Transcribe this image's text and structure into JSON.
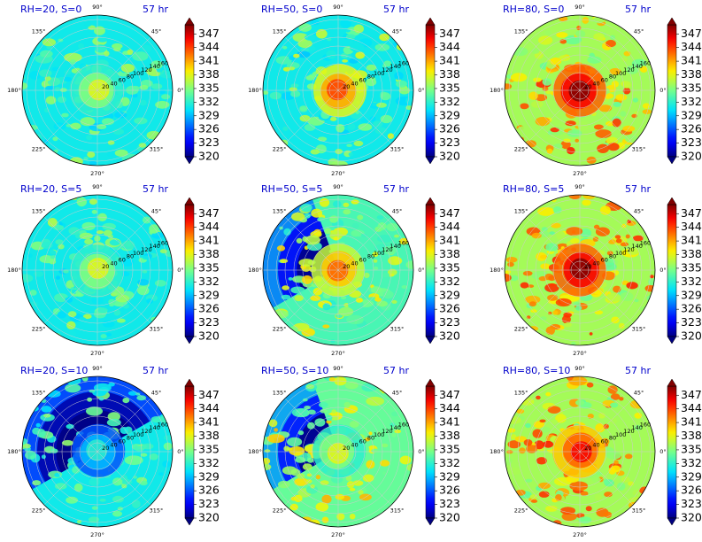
{
  "figure": {
    "time_label": "57 hr",
    "theta_ticks": [
      "0°",
      "45°",
      "90°",
      "135°",
      "180°",
      "225°",
      "270°",
      "315°"
    ],
    "theta_values": [
      0,
      45,
      90,
      135,
      180,
      225,
      270,
      315
    ],
    "r_ticks": [
      "20",
      "40",
      "60",
      "80",
      "100",
      "120",
      "140",
      "160"
    ],
    "r_values": [
      20,
      40,
      60,
      80,
      100,
      120,
      140,
      160
    ],
    "r_max": 170,
    "colorbar_ticks": [
      "320",
      "323",
      "326",
      "329",
      "332",
      "335",
      "338",
      "341",
      "344",
      "347"
    ],
    "colorbar_values": [
      320,
      323,
      326,
      329,
      332,
      335,
      338,
      341,
      344,
      347
    ],
    "colorbar_range": [
      320,
      349
    ],
    "colormap": "jet",
    "title_color": "#0000cc"
  },
  "chart_data": [
    {
      "type": "heatmap",
      "title": "RH=20, S=0",
      "time": "57 hr",
      "field_summary": {
        "background": 331,
        "eyewall": 338,
        "band_strength": 0.5,
        "cold_sector": false
      }
    },
    {
      "type": "heatmap",
      "title": "RH=50, S=0",
      "time": "57 hr",
      "field_summary": {
        "background": 331,
        "eyewall": 344,
        "band_strength": 0.6,
        "cold_sector": false
      }
    },
    {
      "type": "heatmap",
      "title": "RH=80, S=0",
      "time": "57 hr",
      "field_summary": {
        "background": 336,
        "eyewall": 349,
        "band_strength": 0.8,
        "cold_sector": false
      }
    },
    {
      "type": "heatmap",
      "title": "RH=20, S=5",
      "time": "57 hr",
      "field_summary": {
        "background": 331,
        "eyewall": 338,
        "band_strength": 0.5,
        "cold_sector": false
      }
    },
    {
      "type": "heatmap",
      "title": "RH=50, S=5",
      "time": "57 hr",
      "field_summary": {
        "background": 333,
        "eyewall": 343,
        "band_strength": 0.6,
        "cold_sector": true
      }
    },
    {
      "type": "heatmap",
      "title": "RH=80, S=5",
      "time": "57 hr",
      "field_summary": {
        "background": 336,
        "eyewall": 349,
        "band_strength": 0.8,
        "cold_sector": false
      }
    },
    {
      "type": "heatmap",
      "title": "RH=20, S=10",
      "time": "57 hr",
      "field_summary": {
        "background": 331,
        "eyewall": 332,
        "band_strength": 0.4,
        "cold_sector": true
      }
    },
    {
      "type": "heatmap",
      "title": "RH=50, S=10",
      "time": "57 hr",
      "field_summary": {
        "background": 334,
        "eyewall": 338,
        "band_strength": 0.6,
        "cold_sector": true
      }
    },
    {
      "type": "heatmap",
      "title": "RH=80, S=10",
      "time": "57 hr",
      "field_summary": {
        "background": 336,
        "eyewall": 346,
        "band_strength": 0.8,
        "cold_sector": false
      }
    }
  ]
}
